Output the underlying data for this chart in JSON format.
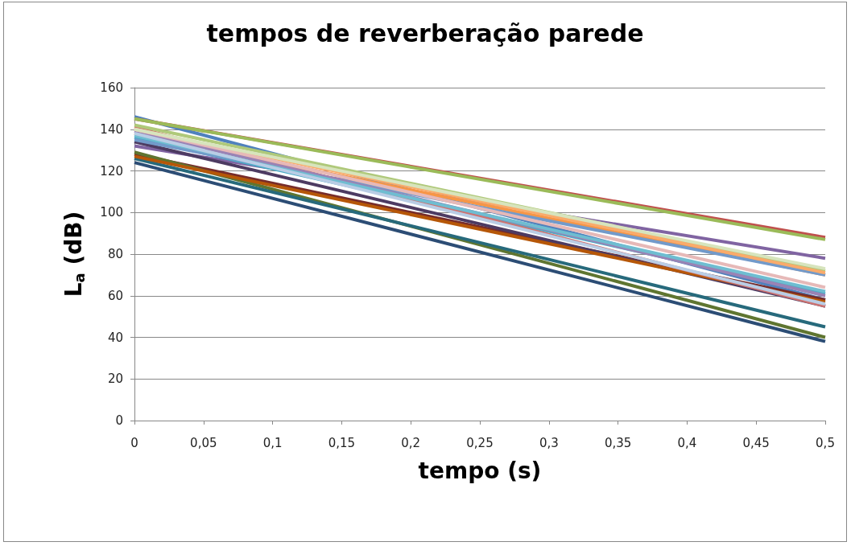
{
  "chart_data": {
    "type": "line",
    "title": "tempos de reverberação parede",
    "xlabel": "tempo (s)",
    "ylabel": "L$_{a}$ (dB)",
    "x": [
      0,
      0.5
    ],
    "xlim": [
      0,
      0.5
    ],
    "xticks": [
      0,
      {
        "value": 0.05,
        "label": "0,05"
      },
      {
        "value": 0.1,
        "label": "0,1"
      },
      {
        "value": 0.15,
        "label": "0,15"
      },
      {
        "value": 0.2,
        "label": "0,2"
      },
      {
        "value": 0.25,
        "label": "0,25"
      },
      {
        "value": 0.3,
        "label": "0,3"
      },
      {
        "value": 0.35,
        "label": "0,35"
      },
      {
        "value": 0.4,
        "label": "0,4"
      },
      {
        "value": 0.45,
        "label": "0,45"
      },
      {
        "value": 0.5,
        "label": "0,5"
      }
    ],
    "ylim": [
      0,
      160
    ],
    "yticks": [
      0,
      20,
      40,
      60,
      80,
      100,
      120,
      140,
      160
    ],
    "grid": "y",
    "marker": "none",
    "line_style": "solid",
    "series": [
      {
        "color": "#4f81bd",
        "values": [
          146,
          58
        ]
      },
      {
        "color": "#c0504d",
        "values": [
          145,
          88
        ]
      },
      {
        "color": "#9bbb59",
        "values": [
          145,
          87
        ]
      },
      {
        "color": "#8064a2",
        "values": [
          132,
          78
        ]
      },
      {
        "color": "#4bacc6",
        "values": [
          136,
          61
        ]
      },
      {
        "color": "#f79646",
        "values": [
          138,
          70
        ]
      },
      {
        "color": "#2c4d75",
        "values": [
          124,
          38
        ]
      },
      {
        "color": "#772c2a",
        "values": [
          128,
          58
        ]
      },
      {
        "color": "#5f7530",
        "values": [
          129,
          40
        ]
      },
      {
        "color": "#4d3b62",
        "values": [
          134,
          55
        ]
      },
      {
        "color": "#276a7c",
        "values": [
          126,
          45
        ]
      },
      {
        "color": "#b65708",
        "values": [
          127,
          57
        ]
      },
      {
        "color": "#729aca",
        "values": [
          135,
          70
        ]
      },
      {
        "color": "#cd7371",
        "values": [
          141,
          55
        ]
      },
      {
        "color": "#afc97a",
        "values": [
          142,
          72
        ]
      },
      {
        "color": "#9983b5",
        "values": [
          139,
          60
        ]
      },
      {
        "color": "#6fbdd1",
        "values": [
          137,
          62
        ]
      },
      {
        "color": "#f9ab6b",
        "values": [
          140,
          71
        ]
      },
      {
        "color": "#b9cde5",
        "values": [
          138,
          56
        ]
      },
      {
        "color": "#e6b9b8",
        "values": [
          140,
          64
        ]
      },
      {
        "color": "#d7e4bd",
        "values": [
          140,
          73
        ]
      }
    ]
  }
}
